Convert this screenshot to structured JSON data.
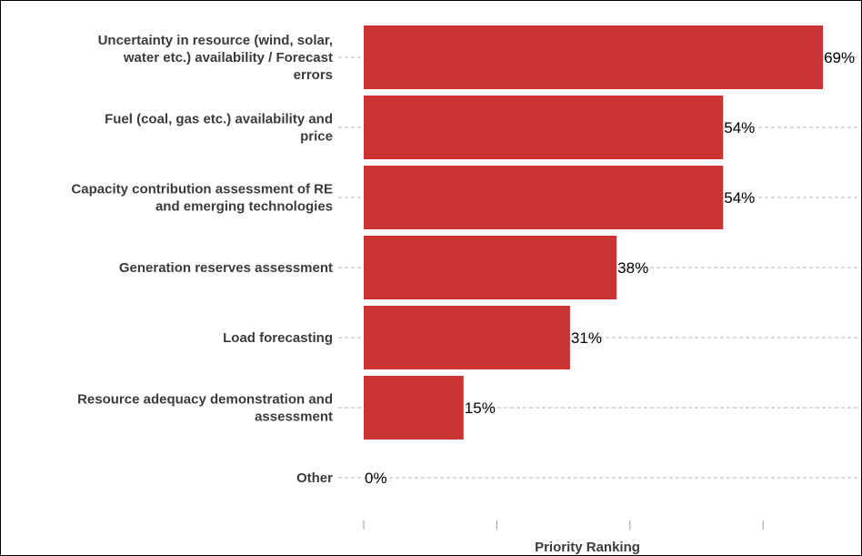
{
  "chart_data": {
    "type": "bar",
    "orientation": "horizontal",
    "categories": [
      "Uncertainty in resource (wind, solar, water etc.) availability / Forecast errors",
      "Fuel (coal, gas etc.) availability and price",
      "Capacity contribution assessment of RE and emerging technologies",
      "Generation reserves assessment",
      "Load forecasting",
      "Resource adequacy demonstration and assessment",
      "Other"
    ],
    "category_lines": [
      [
        "Uncertainty in resource (wind, solar,",
        "water etc.) availability / Forecast",
        "errors"
      ],
      [
        "Fuel (coal, gas etc.) availability and",
        "price"
      ],
      [
        "Capacity contribution assessment of RE",
        "and emerging technologies"
      ],
      [
        "Generation reserves assessment"
      ],
      [
        "Load forecasting"
      ],
      [
        "Resource adequacy demonstration and",
        "assessment"
      ],
      [
        "Other"
      ]
    ],
    "values": [
      69,
      54,
      54,
      38,
      31,
      15,
      0
    ],
    "value_labels": [
      "69%",
      "54%",
      "54%",
      "38%",
      "31%",
      "15%",
      "0%"
    ],
    "xlabel": "Priority Ranking",
    "xlim": [
      0,
      75
    ],
    "x_tick_positions": [
      0,
      20,
      40,
      60
    ],
    "x_tick_labels_shown": false,
    "grid": "horizontal dashed",
    "bar_color": "#cc3333",
    "legend": "none"
  }
}
